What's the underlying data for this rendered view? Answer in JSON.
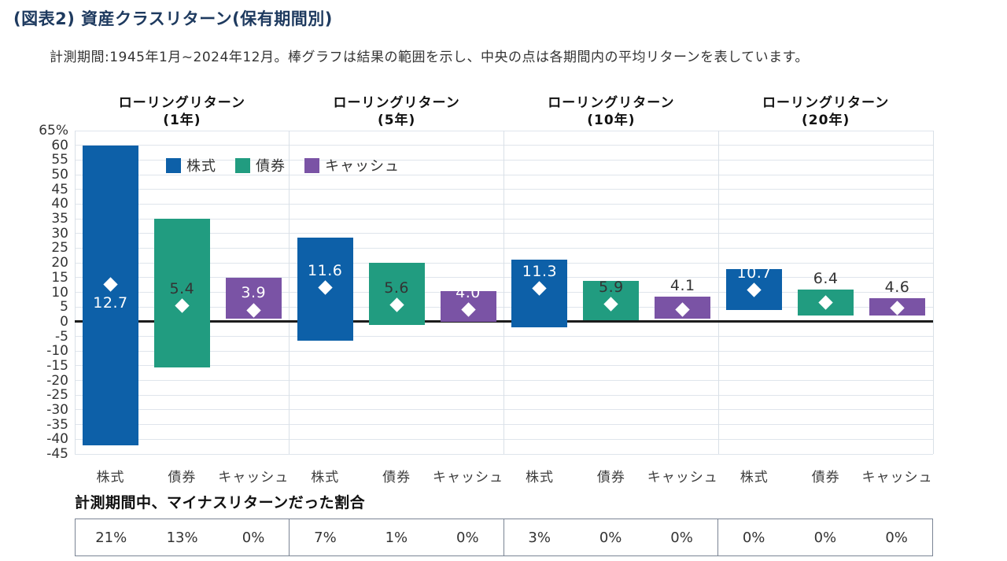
{
  "title": "(図表2) 資産クラスリターン(保有期間別)",
  "subtitle": "計測期間:1945年1月~2024年12月。棒グラフは結果の範囲を示し、中央の点は各期間内の平均リターンを表しています。",
  "legend": {
    "items": [
      {
        "label": "株式",
        "color": "#0d60a8"
      },
      {
        "label": "債券",
        "color": "#219c80"
      },
      {
        "label": "キャッシュ",
        "color": "#7a53a5"
      }
    ]
  },
  "colors": {
    "title_text": "#1e3a5f",
    "grid_line": "#dfe5ec",
    "separator_line": "#d9e0e7",
    "zero_line": "#1c1c1c",
    "axis_text": "#333333",
    "table_border": "#7a8494",
    "value_label_dark": "#333333",
    "value_label_light": "#ffffff"
  },
  "footer": {
    "heading": "計測期間中、マイナスリターンだった割合"
  },
  "chart_data": {
    "type": "bar",
    "subtype": "floating-range-bars-with-average-diamond-markers",
    "title": "資産クラスリターン(保有期間別)",
    "ylim": [
      -45,
      65
    ],
    "ytick_step": 5,
    "ytick_top_label": "65%",
    "grid": true,
    "legend_position": "top-left-inside-plot",
    "series_names": [
      "株式",
      "債券",
      "キャッシュ"
    ],
    "groups": [
      {
        "header_line1": "ローリングリターン",
        "header_line2": "(1年)",
        "bars": [
          {
            "category": "株式",
            "max": 60,
            "min": -42,
            "avg": 12.7,
            "negative_share": "21%",
            "label_style": "light",
            "label_pos": "below-diamond"
          },
          {
            "category": "債券",
            "max": 35,
            "min": -15.5,
            "avg": 5.4,
            "negative_share": "13%",
            "label_style": "dark",
            "label_pos": "above-diamond"
          },
          {
            "category": "キャッシュ",
            "max": 15,
            "min": 1,
            "avg": 3.9,
            "negative_share": "0%",
            "label_style": "light",
            "label_pos": "above-diamond"
          }
        ]
      },
      {
        "header_line1": "ローリングリターン",
        "header_line2": "(5年)",
        "bars": [
          {
            "category": "株式",
            "max": 28.5,
            "min": -6.5,
            "avg": 11.6,
            "negative_share": "7%",
            "label_style": "light",
            "label_pos": "above-diamond"
          },
          {
            "category": "債券",
            "max": 20,
            "min": -1,
            "avg": 5.6,
            "negative_share": "1%",
            "label_style": "dark",
            "label_pos": "above-diamond"
          },
          {
            "category": "キャッシュ",
            "max": 10.5,
            "min": 0,
            "avg": 4.0,
            "negative_share": "0%",
            "label_style": "light",
            "label_pos": "above-diamond"
          }
        ]
      },
      {
        "header_line1": "ローリングリターン",
        "header_line2": "(10年)",
        "bars": [
          {
            "category": "株式",
            "max": 21,
            "min": -2,
            "avg": 11.3,
            "negative_share": "3%",
            "label_style": "light",
            "label_pos": "above-diamond"
          },
          {
            "category": "債券",
            "max": 14,
            "min": 0.5,
            "avg": 5.9,
            "negative_share": "0%",
            "label_style": "dark",
            "label_pos": "above-diamond"
          },
          {
            "category": "キャッシュ",
            "max": 8.5,
            "min": 1,
            "avg": 4.1,
            "negative_share": "0%",
            "label_style": "dark",
            "label_pos": "above-bar"
          }
        ]
      },
      {
        "header_line1": "ローリングリターン",
        "header_line2": "(20年)",
        "bars": [
          {
            "category": "株式",
            "max": 18,
            "min": 4,
            "avg": 10.7,
            "negative_share": "0%",
            "label_style": "light",
            "label_pos": "above-diamond"
          },
          {
            "category": "債券",
            "max": 11,
            "min": 2,
            "avg": 6.4,
            "negative_share": "0%",
            "label_style": "dark",
            "label_pos": "above-bar"
          },
          {
            "category": "キャッシュ",
            "max": 8,
            "min": 2,
            "avg": 4.6,
            "negative_share": "0%",
            "label_style": "dark",
            "label_pos": "above-bar"
          }
        ]
      }
    ],
    "footer_table": {
      "heading": "計測期間中、マイナスリターンだった割合",
      "values": [
        [
          "21%",
          "13%",
          "0%"
        ],
        [
          "7%",
          "1%",
          "0%"
        ],
        [
          "3%",
          "0%",
          "0%"
        ],
        [
          "0%",
          "0%",
          "0%"
        ]
      ]
    }
  }
}
